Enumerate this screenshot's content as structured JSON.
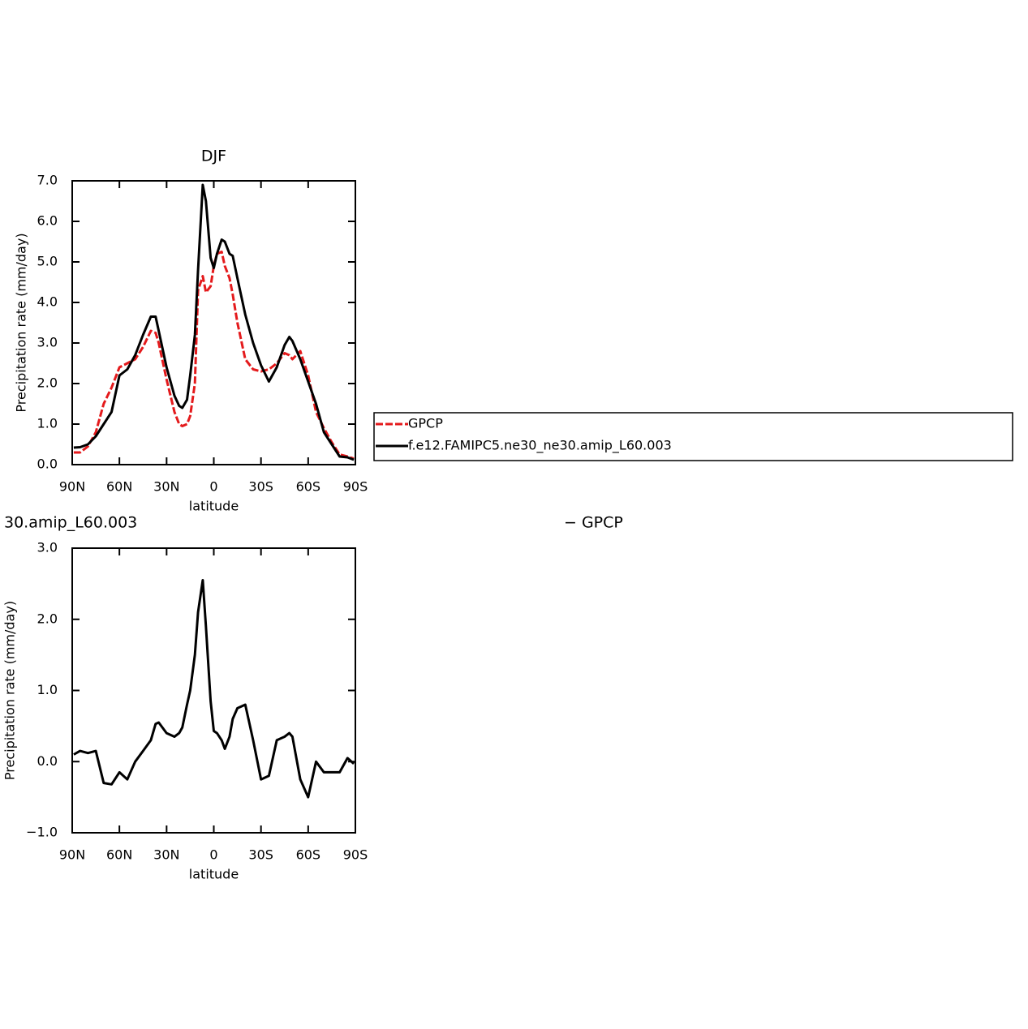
{
  "chart_data": [
    {
      "type": "line",
      "title": "DJF",
      "xlabel": "latitude",
      "ylabel": "Precipitation rate (mm/day)",
      "x": [
        89,
        85,
        80,
        75,
        70,
        65,
        60,
        55,
        50,
        45,
        40,
        37,
        35,
        30,
        25,
        22,
        20,
        17,
        15,
        12,
        10,
        7,
        5,
        2,
        0,
        -2,
        -5,
        -7,
        -10,
        -12,
        -15,
        -20,
        -25,
        -30,
        -35,
        -40,
        -45,
        -48,
        -50,
        -55,
        -60,
        -65,
        -70,
        -75,
        -80,
        -85,
        -89
      ],
      "series": [
        {
          "name": "GPCP",
          "color": "#e41a1c",
          "dashed": true,
          "values": [
            0.3,
            0.3,
            0.45,
            0.8,
            1.5,
            1.9,
            2.4,
            2.5,
            2.6,
            2.9,
            3.3,
            3.25,
            3.0,
            2.1,
            1.3,
            1.0,
            0.95,
            1.0,
            1.2,
            2.0,
            4.3,
            4.65,
            4.25,
            4.4,
            4.9,
            5.2,
            5.25,
            4.9,
            4.6,
            4.2,
            3.5,
            2.6,
            2.35,
            2.3,
            2.35,
            2.5,
            2.75,
            2.7,
            2.6,
            2.8,
            2.2,
            1.3,
            0.9,
            0.55,
            0.25,
            0.2,
            0.15
          ]
        },
        {
          "name": "f.e12.FAMIPC5.ne30_ne30.amip_L60.003",
          "color": "#000000",
          "dashed": false,
          "values": [
            0.42,
            0.43,
            0.5,
            0.7,
            1.0,
            1.3,
            2.2,
            2.35,
            2.7,
            3.2,
            3.65,
            3.65,
            3.3,
            2.4,
            1.7,
            1.45,
            1.4,
            1.6,
            2.2,
            3.2,
            4.8,
            6.9,
            6.5,
            5.1,
            4.85,
            5.2,
            5.55,
            5.5,
            5.2,
            5.15,
            4.6,
            3.7,
            3.0,
            2.45,
            2.05,
            2.4,
            2.95,
            3.15,
            3.05,
            2.6,
            2.05,
            1.5,
            0.8,
            0.5,
            0.2,
            0.18,
            0.12
          ]
        }
      ],
      "xlim": [
        90,
        -90
      ],
      "xticks": [
        {
          "value": 90,
          "label": "90N"
        },
        {
          "value": 60,
          "label": "60N"
        },
        {
          "value": 30,
          "label": "30N"
        },
        0,
        {
          "value": -30,
          "label": "30S"
        },
        {
          "value": -60,
          "label": "60S"
        },
        {
          "value": -90,
          "label": "90S"
        }
      ],
      "ylim": [
        0,
        7
      ],
      "yticks": [
        {
          "value": 0,
          "label": "0.0"
        },
        {
          "value": 1,
          "label": "1.0"
        },
        {
          "value": 2,
          "label": "2.0"
        },
        {
          "value": 3,
          "label": "3.0"
        },
        {
          "value": 4,
          "label": "4.0"
        },
        {
          "value": 5,
          "label": "5.0"
        },
        {
          "value": 6,
          "label": "6.0"
        },
        {
          "value": 7,
          "label": "7.0"
        }
      ],
      "legend": "right"
    },
    {
      "type": "line",
      "title": "30.amip_L60.003",
      "title_right": "− GPCP",
      "xlabel": "latitude",
      "ylabel": "Precipitation rate (mm/day)",
      "x": [
        89,
        85,
        80,
        75,
        70,
        65,
        60,
        55,
        50,
        45,
        40,
        37,
        35,
        30,
        25,
        22,
        20,
        17,
        15,
        12,
        10,
        7,
        5,
        2,
        0,
        -2,
        -5,
        -7,
        -10,
        -12,
        -15,
        -20,
        -25,
        -30,
        -35,
        -40,
        -45,
        -48,
        -50,
        -55,
        -60,
        -65,
        -70,
        -75,
        -80,
        -85,
        -89
      ],
      "series": [
        {
          "color": "#000000",
          "dashed": false,
          "values": [
            0.1,
            0.15,
            0.12,
            0.15,
            -0.3,
            -0.32,
            -0.15,
            -0.25,
            0.0,
            0.15,
            0.3,
            0.53,
            0.55,
            0.4,
            0.35,
            0.4,
            0.48,
            0.8,
            1.0,
            1.5,
            2.1,
            2.55,
            1.9,
            0.85,
            0.43,
            0.4,
            0.3,
            0.18,
            0.35,
            0.6,
            0.75,
            0.8,
            0.3,
            -0.25,
            -0.2,
            0.3,
            0.35,
            0.4,
            0.35,
            -0.25,
            -0.5,
            0.0,
            -0.15,
            -0.15,
            -0.15,
            0.05,
            -0.03
          ]
        }
      ],
      "xlim": [
        90,
        -90
      ],
      "xticks": [
        {
          "value": 90,
          "label": "90N"
        },
        {
          "value": 60,
          "label": "60N"
        },
        {
          "value": 30,
          "label": "30N"
        },
        0,
        {
          "value": -30,
          "label": "30S"
        },
        {
          "value": -60,
          "label": "60S"
        },
        {
          "value": -90,
          "label": "90S"
        }
      ],
      "ylim": [
        -1,
        3
      ],
      "yticks": [
        {
          "value": -1,
          "label": "−1.0"
        },
        {
          "value": 0,
          "label": "0.0"
        },
        {
          "value": 1,
          "label": "1.0"
        },
        {
          "value": 2,
          "label": "2.0"
        },
        {
          "value": 3,
          "label": "3.0"
        }
      ]
    }
  ]
}
